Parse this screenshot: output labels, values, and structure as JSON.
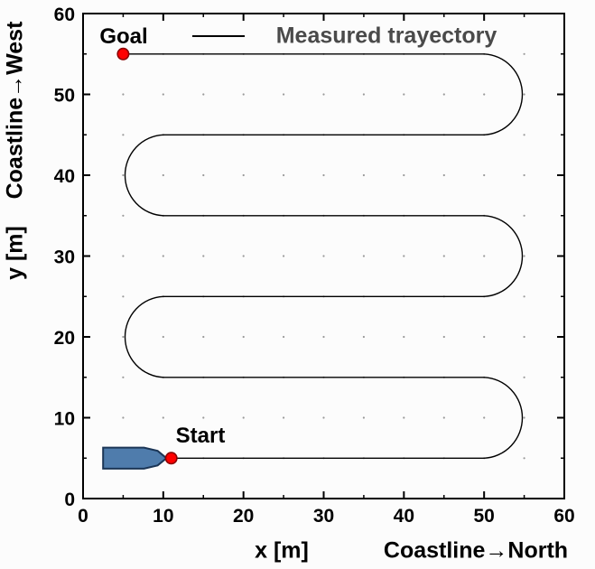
{
  "window": {
    "background": "#fcfcfc"
  },
  "plot": {
    "frame_color": "#000000",
    "labels": {
      "goal": "Goal",
      "start": "Start",
      "x_axis": "x [m]",
      "x_axis_coastline": "Coastline→North",
      "y_axis": "y [m]",
      "y_axis_coastline": "Coastline→West"
    },
    "legend": {
      "label": "Measured trayectory",
      "line_color": "#000000",
      "text_color": "#4a4a4a"
    }
  },
  "chart_data": {
    "type": "line",
    "title": "",
    "xlabel": "x [m]  Coastline→North",
    "ylabel": "y [m]  Coastline→West",
    "xlim": [
      0,
      60
    ],
    "ylim": [
      0,
      60
    ],
    "x_ticks": [
      0,
      10,
      20,
      30,
      40,
      50,
      60
    ],
    "y_ticks": [
      0,
      10,
      20,
      30,
      40,
      50,
      60
    ],
    "grid": {
      "style": "dotted",
      "spacing": 5,
      "color": "#999999"
    },
    "legend_position": "top-center",
    "series": [
      {
        "name": "Measured trayectory",
        "color": "#000000",
        "description": "Boustrophedon survey path: horizontal legs at y = 5,15,25,35,45,55 m joined by semicircular turns of radius 5 m (east turns bulge to x≈55, west turns bulge to x≈5), running from Start (11,5) to Goal (5,55)",
        "segments": [
          {
            "type": "move",
            "pt": [
              11,
              5
            ]
          },
          {
            "type": "line",
            "pt": [
              50,
              5
            ]
          },
          {
            "type": "arc",
            "pt": [
              50,
              15
            ],
            "r": 5,
            "bulge": "east"
          },
          {
            "type": "line",
            "pt": [
              10,
              15
            ]
          },
          {
            "type": "arc",
            "pt": [
              10,
              25
            ],
            "r": 5,
            "bulge": "west"
          },
          {
            "type": "line",
            "pt": [
              50,
              25
            ]
          },
          {
            "type": "arc",
            "pt": [
              50,
              35
            ],
            "r": 5,
            "bulge": "east"
          },
          {
            "type": "line",
            "pt": [
              10,
              35
            ]
          },
          {
            "type": "arc",
            "pt": [
              10,
              45
            ],
            "r": 5,
            "bulge": "west"
          },
          {
            "type": "line",
            "pt": [
              50,
              45
            ]
          },
          {
            "type": "arc",
            "pt": [
              50,
              55
            ],
            "r": 5,
            "bulge": "east"
          },
          {
            "type": "line",
            "pt": [
              5,
              55
            ]
          }
        ]
      }
    ],
    "markers": [
      {
        "name": "Goal",
        "x": 5,
        "y": 55,
        "color": "#ff0000",
        "outline": "#8b0000"
      },
      {
        "name": "Start",
        "x": 11,
        "y": 5,
        "color": "#ff0000",
        "outline": "#8b0000"
      }
    ],
    "vehicle": {
      "name": "boat",
      "fill": "#4f7cac",
      "outline": "#1b3556",
      "polygon": [
        [
          2.5,
          6.3
        ],
        [
          7.6,
          6.3
        ],
        [
          9.3,
          5.9
        ],
        [
          10.4,
          5.0
        ],
        [
          9.3,
          4.1
        ],
        [
          7.6,
          3.7
        ],
        [
          2.5,
          3.7
        ]
      ]
    }
  }
}
